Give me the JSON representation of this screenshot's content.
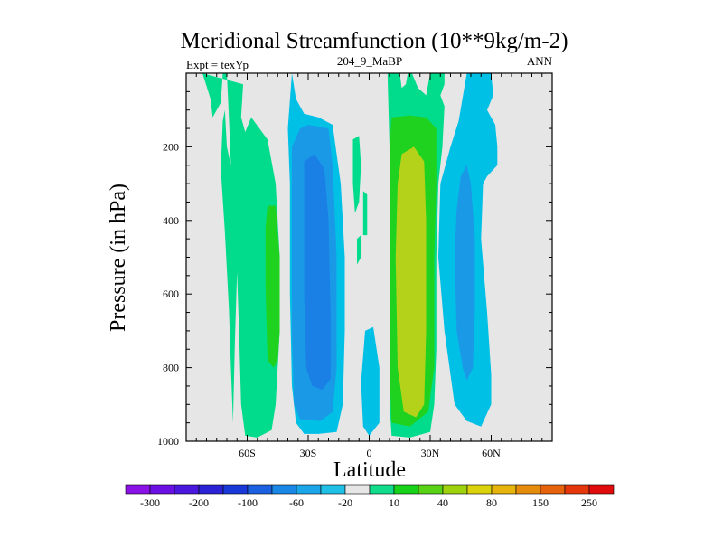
{
  "chart_data": {
    "type": "heatmap",
    "title": "Meridional Streamfunction (10**9kg/m-2)",
    "subtitle_left": "Expt = texYp",
    "subtitle_center": "204_9_MaBP",
    "subtitle_right": "ANN",
    "xlabel": "Latitude",
    "ylabel": "Pressure (in hPa)",
    "xlim": [
      -90,
      90
    ],
    "ylim": [
      1000,
      0
    ],
    "x_ticks": [
      {
        "value": -60,
        "label": "60S"
      },
      {
        "value": -30,
        "label": "30S"
      },
      {
        "value": 0,
        "label": "0"
      },
      {
        "value": 30,
        "label": "30N"
      },
      {
        "value": 60,
        "label": "60N"
      }
    ],
    "y_ticks": [
      {
        "value": 200,
        "label": "200"
      },
      {
        "value": 400,
        "label": "400"
      },
      {
        "value": 600,
        "label": "600"
      },
      {
        "value": 800,
        "label": "800"
      },
      {
        "value": 1000,
        "label": "1000"
      }
    ],
    "background_color": "#e6e6e6",
    "colorbar": {
      "orientation": "horizontal",
      "colors": [
        "#8a12e6",
        "#6a10e2",
        "#4a18dc",
        "#2a22d4",
        "#1838d8",
        "#1a60e0",
        "#1a86e6",
        "#1aa6e8",
        "#20c0e6",
        "#e6e6e6",
        "#10dc8c",
        "#18d21a",
        "#58d214",
        "#9ed20e",
        "#dcd20c",
        "#e6b40c",
        "#e68c0c",
        "#e6620c",
        "#e4380c",
        "#e00c0c"
      ],
      "labels": [
        "-300",
        "-200",
        "-100",
        "-60",
        "-20",
        "10",
        "40",
        "80",
        "150",
        "250"
      ]
    },
    "levels": {
      "cyan": "#00c0e6",
      "blue_light": "#1a9ae6",
      "blue_mid": "#1a80e6",
      "teal": "#00dc8c",
      "green": "#20d220",
      "yellow_green": "#b4d21a"
    },
    "contours": [
      {
        "color": "teal",
        "points": [
          [
            -82,
            0
          ],
          [
            -78,
            70
          ],
          [
            -77,
            120
          ],
          [
            -73,
            80
          ],
          [
            -72,
            0
          ],
          [
            -70,
            0
          ],
          [
            -69,
            120
          ],
          [
            -68,
            250
          ],
          [
            -70,
            200
          ],
          [
            -71,
            100
          ],
          [
            -72,
            130
          ],
          [
            -73,
            260
          ],
          [
            -71,
            430
          ],
          [
            -69,
            640
          ],
          [
            -68,
            800
          ],
          [
            -67,
            950
          ],
          [
            -66,
            720
          ],
          [
            -65,
            540
          ],
          [
            -64,
            700
          ],
          [
            -63,
            900
          ],
          [
            -61,
            985
          ],
          [
            -55,
            990
          ],
          [
            -48,
            970
          ],
          [
            -46,
            900
          ],
          [
            -44,
            700
          ],
          [
            -44,
            500
          ],
          [
            -46,
            300
          ],
          [
            -50,
            180
          ],
          [
            -58,
            120
          ],
          [
            -61,
            160
          ],
          [
            -63,
            120
          ],
          [
            -62,
            30
          ]
        ]
      },
      {
        "color": "green",
        "points": [
          [
            -50,
            360
          ],
          [
            -46,
            360
          ],
          [
            -44,
            500
          ],
          [
            -44,
            700
          ],
          [
            -45,
            780
          ],
          [
            -47,
            800
          ],
          [
            -50,
            780
          ],
          [
            -51,
            580
          ],
          [
            -51,
            420
          ]
        ]
      },
      {
        "color": "cyan",
        "points": [
          [
            -38,
            0
          ],
          [
            -36,
            70
          ],
          [
            -32,
            110
          ],
          [
            -25,
            120
          ],
          [
            -18,
            140
          ],
          [
            -16,
            220
          ],
          [
            -14,
            300
          ],
          [
            -12,
            500
          ],
          [
            -12,
            700
          ],
          [
            -13,
            900
          ],
          [
            -16,
            975
          ],
          [
            -25,
            980
          ],
          [
            -32,
            980
          ],
          [
            -36,
            950
          ],
          [
            -38,
            850
          ],
          [
            -39,
            600
          ],
          [
            -39,
            300
          ],
          [
            -40,
            150
          ]
        ]
      },
      {
        "color": "blue_light",
        "points": [
          [
            -38,
            200
          ],
          [
            -34,
            150
          ],
          [
            -30,
            140
          ],
          [
            -20,
            150
          ],
          [
            -18,
            250
          ],
          [
            -16,
            500
          ],
          [
            -16,
            800
          ],
          [
            -18,
            920
          ],
          [
            -24,
            945
          ],
          [
            -34,
            940
          ],
          [
            -37,
            900
          ],
          [
            -38,
            700
          ],
          [
            -38,
            450
          ]
        ]
      },
      {
        "color": "blue_mid",
        "points": [
          [
            -32,
            240
          ],
          [
            -27,
            220
          ],
          [
            -22,
            260
          ],
          [
            -20,
            400
          ],
          [
            -19,
            650
          ],
          [
            -19,
            830
          ],
          [
            -23,
            860
          ],
          [
            -28,
            850
          ],
          [
            -31,
            800
          ],
          [
            -32,
            600
          ]
        ]
      },
      {
        "color": "teal",
        "points": [
          [
            -8,
            180
          ],
          [
            -5,
            170
          ],
          [
            -4,
            250
          ],
          [
            -5,
            350
          ],
          [
            -7,
            380
          ],
          [
            -8,
            300
          ]
        ]
      },
      {
        "color": "teal",
        "points": [
          [
            -6,
            450
          ],
          [
            -4,
            440
          ],
          [
            -4,
            500
          ],
          [
            -6,
            520
          ]
        ]
      },
      {
        "color": "cyan",
        "points": [
          [
            -2,
            700
          ],
          [
            2,
            690
          ],
          [
            5,
            800
          ],
          [
            5,
            950
          ],
          [
            0,
            985
          ],
          [
            -3,
            960
          ],
          [
            -4,
            840
          ]
        ]
      },
      {
        "color": "teal",
        "points": [
          [
            -3,
            320
          ],
          [
            -1,
            330
          ],
          [
            -1,
            440
          ],
          [
            -3,
            440
          ]
        ]
      },
      {
        "color": "cyan",
        "points": [
          [
            48,
            0
          ],
          [
            60,
            0
          ],
          [
            61,
            60
          ],
          [
            58,
            100
          ],
          [
            62,
            140
          ],
          [
            63,
            200
          ],
          [
            63,
            250
          ],
          [
            58,
            280
          ],
          [
            56,
            300
          ],
          [
            55,
            450
          ],
          [
            58,
            650
          ],
          [
            60,
            820
          ],
          [
            60,
            900
          ],
          [
            55,
            960
          ],
          [
            48,
            945
          ],
          [
            42,
            900
          ],
          [
            37,
            700
          ],
          [
            34,
            500
          ],
          [
            35,
            300
          ],
          [
            40,
            200
          ],
          [
            44,
            130
          ]
        ]
      },
      {
        "color": "blue_light",
        "points": [
          [
            45,
            280
          ],
          [
            48,
            250
          ],
          [
            50,
            300
          ],
          [
            52,
            450
          ],
          [
            52,
            640
          ],
          [
            51,
            800
          ],
          [
            48,
            835
          ],
          [
            46,
            800
          ],
          [
            43,
            700
          ],
          [
            42,
            500
          ],
          [
            43,
            370
          ]
        ]
      },
      {
        "color": "teal",
        "points": [
          [
            9,
            0
          ],
          [
            15,
            0
          ],
          [
            16,
            40
          ],
          [
            18,
            30
          ],
          [
            19,
            0
          ],
          [
            21,
            0
          ],
          [
            24,
            40
          ],
          [
            28,
            60
          ],
          [
            30,
            0
          ],
          [
            37,
            0
          ],
          [
            37,
            30
          ],
          [
            35,
            60
          ],
          [
            37,
            90
          ],
          [
            36,
            200
          ],
          [
            34,
            300
          ],
          [
            33,
            500
          ],
          [
            33,
            750
          ],
          [
            32,
            900
          ],
          [
            30,
            975
          ],
          [
            20,
            990
          ],
          [
            11,
            985
          ],
          [
            10,
            900
          ],
          [
            10,
            700
          ],
          [
            10,
            400
          ],
          [
            10,
            200
          ]
        ]
      },
      {
        "color": "green",
        "points": [
          [
            11,
            120
          ],
          [
            20,
            115
          ],
          [
            28,
            120
          ],
          [
            33,
            150
          ],
          [
            33,
            300
          ],
          [
            32,
            500
          ],
          [
            32,
            800
          ],
          [
            29,
            920
          ],
          [
            20,
            960
          ],
          [
            11,
            950
          ],
          [
            10,
            800
          ],
          [
            10,
            500
          ],
          [
            10,
            200
          ]
        ]
      },
      {
        "color": "yellow_green",
        "points": [
          [
            16,
            220
          ],
          [
            22,
            200
          ],
          [
            27,
            240
          ],
          [
            28,
            400
          ],
          [
            28,
            700
          ],
          [
            27,
            900
          ],
          [
            23,
            935
          ],
          [
            17,
            920
          ],
          [
            14,
            800
          ],
          [
            13,
            500
          ],
          [
            14,
            300
          ]
        ]
      }
    ]
  }
}
